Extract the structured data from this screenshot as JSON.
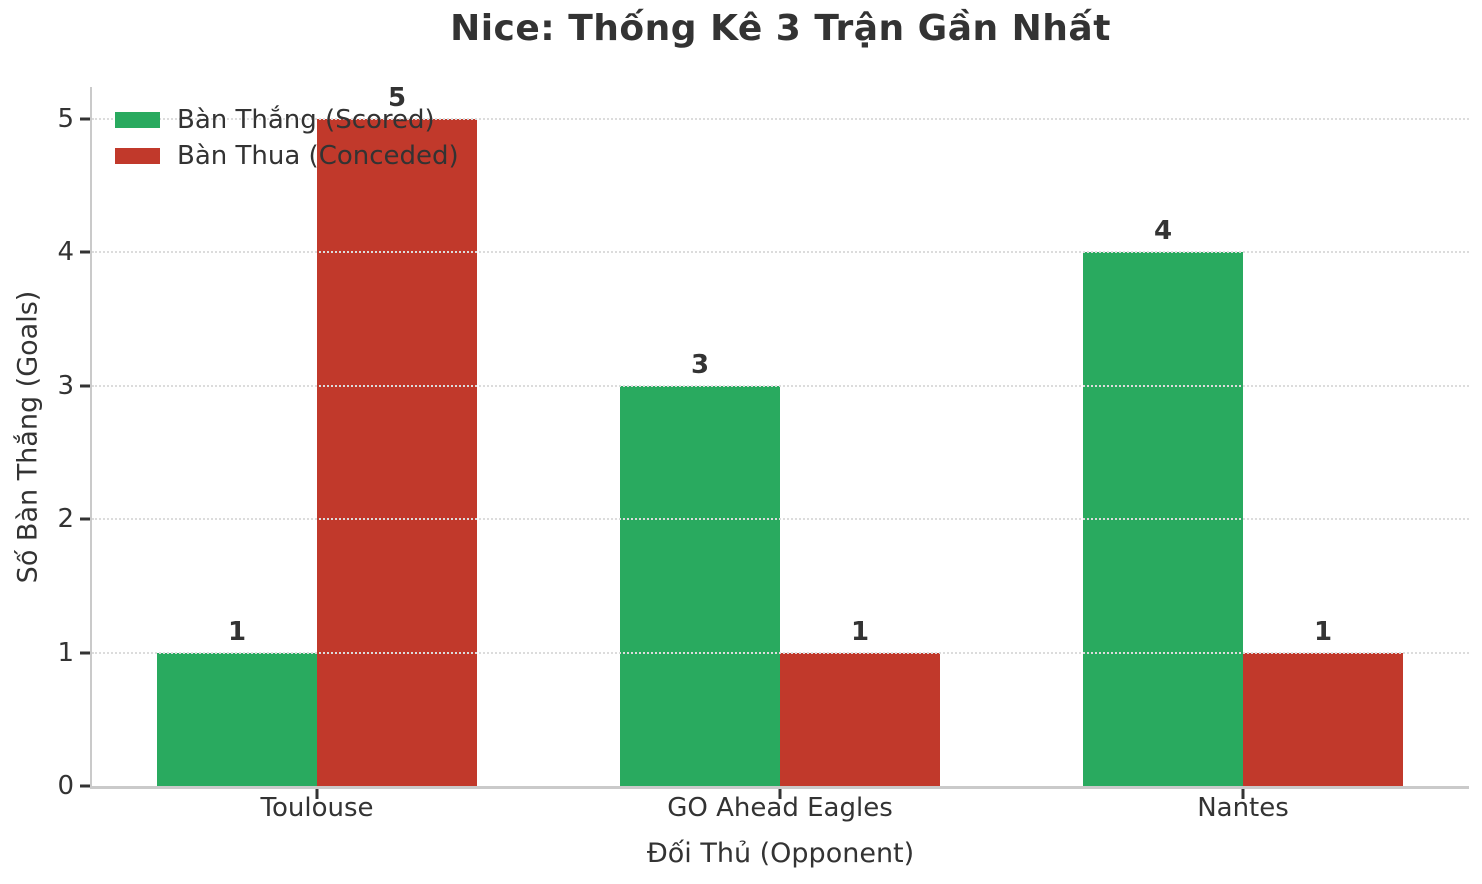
{
  "title": "Nice: Thống Kê 3 Trận Gần Nhất",
  "axes": {
    "xlabel": "Đối Thủ (Opponent)",
    "ylabel": "Số Bàn Thắng (Goals)"
  },
  "legend": {
    "items": [
      {
        "label": "Bàn Thắng (Scored)",
        "color": "#29aa5f"
      },
      {
        "label": "Bàn Thua (Conceded)",
        "color": "#c1392b"
      }
    ]
  },
  "chart_data": {
    "type": "bar",
    "title": "Nice: Thống Kê 3 Trận Gần Nhất",
    "categories": [
      "Toulouse",
      "GO Ahead Eagles",
      "Nantes"
    ],
    "series": [
      {
        "name": "Bàn Thắng (Scored)",
        "color": "#29aa5f",
        "values": [
          1,
          3,
          4
        ]
      },
      {
        "name": "Bàn Thua (Conceded)",
        "color": "#c1392b",
        "values": [
          5,
          1,
          1
        ]
      }
    ],
    "xlabel": "Đối Thủ (Opponent)",
    "ylabel": "Số Bàn Thắng (Goals)",
    "ylim": [
      0,
      5
    ],
    "yticks": [
      0,
      1,
      2,
      3,
      4,
      5
    ],
    "grid": "horizontal-dotted",
    "grid_above_bars": true,
    "legend_position": "upper-left",
    "legend_frame": false,
    "value_labels": true
  },
  "style": {
    "background": "#ffffff",
    "text_color": "#333333",
    "spine_color": "#cacaca",
    "grid_color": "#dcdcdc"
  }
}
